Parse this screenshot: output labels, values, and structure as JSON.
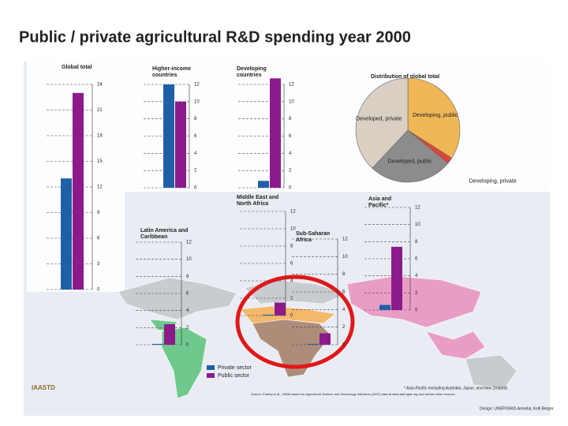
{
  "slide_title": "Public / private agricultural R&D spending year 2000",
  "legend": {
    "series": [
      {
        "name": "Private sector",
        "color": "#1f5fa8"
      },
      {
        "name": "Public sector",
        "color": "#8b1a8b"
      }
    ]
  },
  "chart_data": [
    {
      "type": "bar",
      "title": [
        "Global total"
      ],
      "values": [
        13,
        23
      ],
      "ylim": [
        0,
        24
      ],
      "yticks": [
        0,
        3,
        6,
        9,
        12,
        15,
        18,
        21,
        24
      ]
    },
    {
      "type": "bar",
      "title": [
        "Higher-income",
        "countries"
      ],
      "values": [
        12,
        10
      ],
      "ylim": [
        0,
        12
      ],
      "yticks": [
        0,
        2,
        4,
        6,
        8,
        10,
        12
      ]
    },
    {
      "type": "bar",
      "title": [
        "Developing",
        "countries"
      ],
      "values": [
        0.8,
        12.7
      ],
      "ylim": [
        0,
        12
      ],
      "yticks": [
        0,
        2,
        4,
        6,
        8,
        10,
        12
      ]
    },
    {
      "type": "bar",
      "title": [
        "Middle East and",
        "North Africa"
      ],
      "values": [
        0.1,
        1.5
      ],
      "ylim": [
        0,
        12
      ],
      "yticks": [
        0,
        2,
        4,
        6,
        8,
        10,
        12
      ]
    },
    {
      "type": "bar",
      "title": [
        "Latin America and",
        "Caribbean"
      ],
      "values": [
        0.1,
        2.4
      ],
      "ylim": [
        0,
        12
      ],
      "yticks": [
        0,
        2,
        4,
        6,
        8,
        10,
        12
      ]
    },
    {
      "type": "bar",
      "title": [
        "Sub-Saharan",
        "Africa"
      ],
      "values": [
        0.1,
        1.3
      ],
      "ylim": [
        0,
        12
      ],
      "yticks": [
        0,
        2,
        4,
        6,
        8,
        10,
        12
      ]
    },
    {
      "type": "bar",
      "title": [
        "Asia and",
        "Pacific*"
      ],
      "values": [
        0.6,
        7.4
      ],
      "ylim": [
        0,
        12
      ],
      "yticks": [
        0,
        2,
        4,
        6,
        8,
        10,
        12
      ]
    },
    {
      "type": "pie",
      "title": [
        "Distribution of global total"
      ],
      "categories": [
        "Developing, public",
        "Developing, private",
        "Developed, public",
        "Developed, private"
      ],
      "values": [
        34,
        2,
        26,
        38
      ],
      "colors": [
        "#eeb655",
        "#e0453a",
        "#8c8c8c",
        "#d9cfc3"
      ]
    }
  ],
  "notes": {
    "footnote": "* Asia-Pacific excluding Australia, Japan, and New Zealand.",
    "source": "Source: Pardey et al., 2006b based on Agricultural Science and Technology Indicators (ASTI) data at www.asti.cgiar.org and various other sources.",
    "design": "Design: UNEP/GRID-Arendal, Kelli Berger",
    "logo": "IAASTD"
  }
}
